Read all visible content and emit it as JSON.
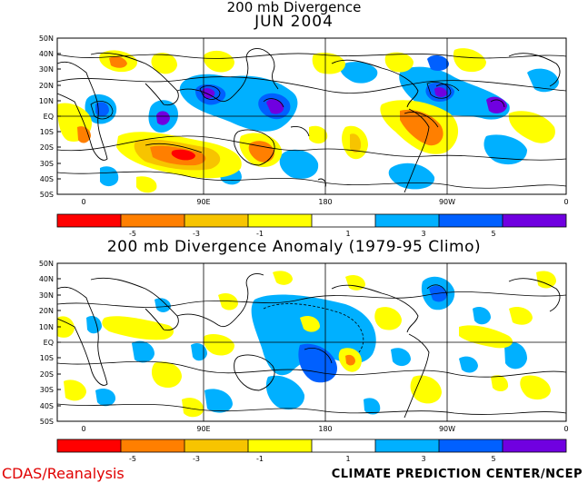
{
  "titles": {
    "top_line1": "200 mb Divergence",
    "top_line2": "JUN 2004",
    "bottom": "200 mb Divergence Anomaly (1979-95 Climo)"
  },
  "lat_labels": [
    "50N",
    "40N",
    "30N",
    "20N",
    "10N",
    "EQ",
    "10S",
    "20S",
    "30S",
    "40S",
    "50S"
  ],
  "lon_labels": [
    "0",
    "90E",
    "180",
    "90W",
    "0"
  ],
  "legend": {
    "colors": [
      "#ff0000",
      "#ff7f00",
      "#f7c400",
      "#ffff00",
      "#ffffff",
      "#00b0ff",
      "#0060ff",
      "#7000e0"
    ],
    "labels": [
      "-5",
      "-3",
      "-1",
      "1",
      "3",
      "5"
    ]
  },
  "footer": {
    "left": "CDAS/Reanalysis",
    "right": "CLIMATE PREDICTION CENTER/NCEP"
  }
}
